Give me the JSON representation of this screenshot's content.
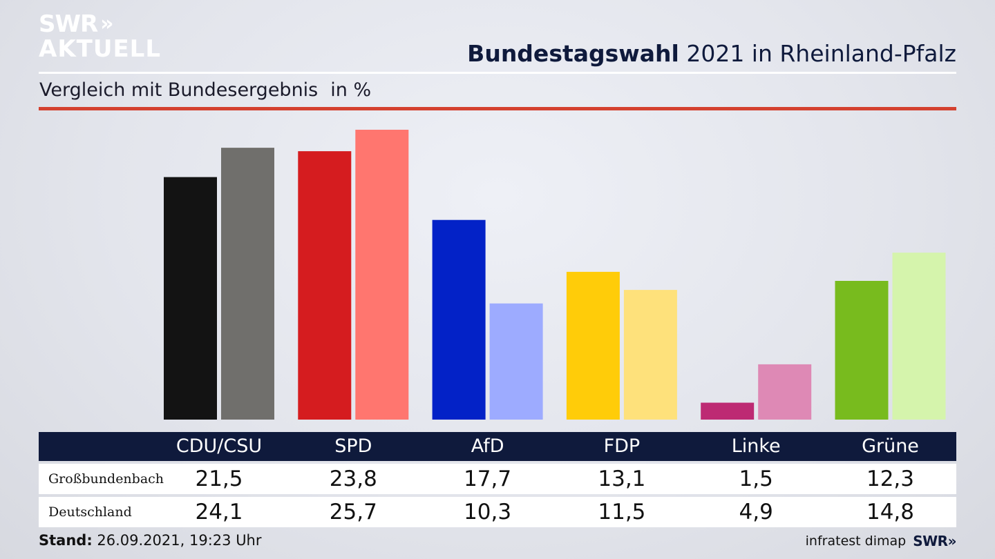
{
  "brand": {
    "logo_line1": "SWR",
    "logo_line2": "AKTUELL",
    "logo_chevrons": "»"
  },
  "header": {
    "title_bold": "Bundestagswahl",
    "title_rest": "2021 in Rheinland-Pfalz",
    "subtitle": "Vergleich mit Bundesergebnis",
    "unit": "in %"
  },
  "footer": {
    "stand_label": "Stand:",
    "stand_value": "26.09.2021, 19:23 Uhr",
    "source": "infratest dimap",
    "swr": "SWR»"
  },
  "colors": {
    "navy": "#0f1a3c",
    "accent_red": "#d4412f",
    "local": [
      "#131313",
      "#d51c1f",
      "#0322c7",
      "#ffcc09",
      "#bd2a73",
      "#78bb1e"
    ],
    "national": [
      "#706f6c",
      "#ff766f",
      "#9dabff",
      "#fee17b",
      "#de89b5",
      "#d5f4ac"
    ]
  },
  "chart_data": {
    "type": "bar",
    "categories": [
      "CDU/CSU",
      "SPD",
      "AfD",
      "FDP",
      "Linke",
      "Grüne"
    ],
    "series": [
      {
        "name": "Großbundenbach",
        "values": [
          21.5,
          23.8,
          17.7,
          13.1,
          1.5,
          12.3
        ]
      },
      {
        "name": "Deutschland",
        "values": [
          24.1,
          25.7,
          10.3,
          11.5,
          4.9,
          14.8
        ]
      }
    ],
    "value_labels": [
      [
        "21,5",
        "23,8",
        "17,7",
        "13,1",
        "1,5",
        "12,3"
      ],
      [
        "24,1",
        "25,7",
        "10,3",
        "11,5",
        "4,9",
        "14,8"
      ]
    ],
    "title": "Bundestagswahl 2021 in Rheinland-Pfalz",
    "subtitle": "Vergleich mit Bundesergebnis",
    "ylabel": "in %",
    "ylim": [
      0,
      25.7
    ],
    "grid": false,
    "legend": "table-below"
  }
}
